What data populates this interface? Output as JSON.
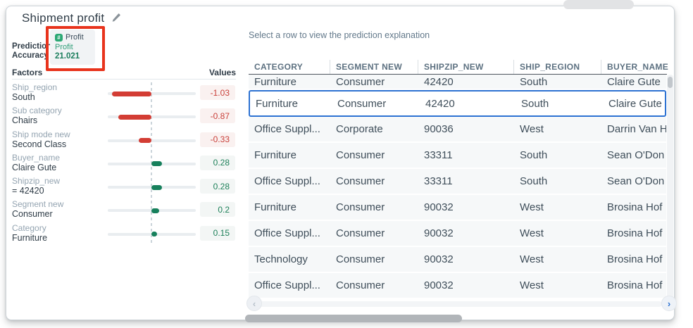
{
  "panel": {
    "title": "Shipment profit",
    "accuracy_label_line1": "Prediction",
    "accuracy_label_line2": "Accuracy",
    "badge": {
      "chip_label": "Profit",
      "target": "Profit",
      "value": "21.021"
    },
    "factors_header": "Factors",
    "values_header": "Values",
    "factors": [
      {
        "name": "Ship_region",
        "value": "South",
        "contribution": -1.03,
        "display": "-1.03"
      },
      {
        "name": "Sub category",
        "value": "Chairs",
        "contribution": -0.87,
        "display": "-0.87"
      },
      {
        "name": "Ship mode new",
        "value": "Second Class",
        "contribution": -0.33,
        "display": "-0.33"
      },
      {
        "name": "Buyer_name",
        "value": "Claire Gute",
        "contribution": 0.28,
        "display": "0.28"
      },
      {
        "name": "Shipzip_new",
        "value": "= 42420",
        "contribution": 0.28,
        "display": "0.28"
      },
      {
        "name": "Segment new",
        "value": "Consumer",
        "contribution": 0.2,
        "display": "0.2"
      },
      {
        "name": "Category",
        "value": "Furniture",
        "contribution": 0.15,
        "display": "0.15"
      }
    ]
  },
  "chart_data": {
    "type": "bar",
    "orientation": "horizontal",
    "title": "Factors",
    "categories": [
      "Ship_region South",
      "Sub category Chairs",
      "Ship mode new Second Class",
      "Buyer_name Claire Gute",
      "Shipzip_new = 42420",
      "Segment new Consumer",
      "Category Furniture"
    ],
    "values": [
      -1.03,
      -0.87,
      -0.33,
      0.28,
      0.28,
      0.2,
      0.15
    ],
    "xlabel": "Values",
    "ylabel": "Factors",
    "xlim": [
      -1.15,
      1.15
    ],
    "negative_color": "#d33d34",
    "positive_color": "#17805c"
  },
  "table": {
    "hint": "Select a row to view the prediction explanation",
    "columns": [
      "CATEGORY",
      "SEGMENT NEW",
      "SHIPZIP_NEW",
      "SHIP_REGION",
      "BUYER_NAME"
    ],
    "rows": [
      {
        "cells": [
          "Furniture",
          "Consumer",
          "42420",
          "South",
          "Claire Gute"
        ],
        "partial": true,
        "selected": false
      },
      {
        "cells": [
          "Furniture",
          "Consumer",
          "42420",
          "South",
          "Claire Gute"
        ],
        "partial": false,
        "selected": true
      },
      {
        "cells": [
          "Office Suppl...",
          "Corporate",
          "90036",
          "West",
          "Darrin Van H"
        ],
        "partial": false,
        "selected": false
      },
      {
        "cells": [
          "Furniture",
          "Consumer",
          "33311",
          "South",
          "Sean O'Don"
        ],
        "partial": false,
        "selected": false
      },
      {
        "cells": [
          "Office Suppl...",
          "Consumer",
          "33311",
          "South",
          "Sean O'Don"
        ],
        "partial": false,
        "selected": false
      },
      {
        "cells": [
          "Furniture",
          "Consumer",
          "90032",
          "West",
          "Brosina Hof"
        ],
        "partial": false,
        "selected": false
      },
      {
        "cells": [
          "Office Suppl...",
          "Consumer",
          "90032",
          "West",
          "Brosina Hof"
        ],
        "partial": false,
        "selected": false
      },
      {
        "cells": [
          "Technology",
          "Consumer",
          "90032",
          "West",
          "Brosina Hof"
        ],
        "partial": false,
        "selected": false
      },
      {
        "cells": [
          "Office Suppl...",
          "Consumer",
          "90032",
          "West",
          "Brosina Hof"
        ],
        "partial": false,
        "selected": false
      }
    ]
  },
  "pagination": {
    "prev_glyph": "‹",
    "next_glyph": "›"
  },
  "icons": {
    "edit": "pencil-icon",
    "metric_chip": "number-chip-icon",
    "prev": "chevron-left-icon",
    "next": "chevron-right-icon"
  },
  "colors": {
    "accent_blue": "#2d72d2",
    "negative_red": "#d33d34",
    "positive_green": "#17805c",
    "annotation_red": "#e8331c",
    "badge_green_text": "#2f9e78",
    "header_slate": "#5c7080"
  }
}
